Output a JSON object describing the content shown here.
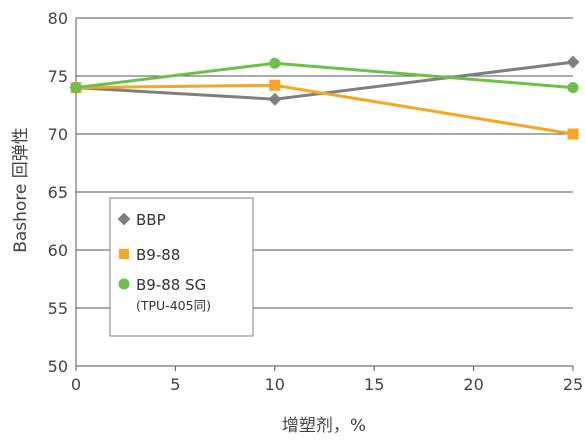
{
  "chart_data": {
    "type": "line",
    "title": "",
    "xlabel": "增塑剂，%",
    "ylabel": "Bashore 回弹性",
    "xlim": [
      0,
      25
    ],
    "ylim": [
      50,
      80
    ],
    "x_ticks": [
      "0",
      "5",
      "10",
      "15",
      "20",
      "25"
    ],
    "y_ticks": [
      "50",
      "55",
      "60",
      "65",
      "70",
      "75",
      "80"
    ],
    "grid": "horizontal",
    "legend_position": "lower-left",
    "series": [
      {
        "name": "BBP",
        "marker": "diamond",
        "color": "#7f7f7f",
        "points": [
          [
            0,
            74
          ],
          [
            10,
            73
          ],
          [
            25,
            76.2
          ]
        ]
      },
      {
        "name": "B9-88",
        "marker": "square",
        "color": "#f5a623",
        "points": [
          [
            0,
            74
          ],
          [
            10,
            74.2
          ],
          [
            25,
            70
          ]
        ]
      },
      {
        "name": "B9-88 SG",
        "name_note": "(TPU-405同)",
        "marker": "circle",
        "color": "#6cc04a",
        "points": [
          [
            0,
            74
          ],
          [
            10,
            76.1
          ],
          [
            25,
            74
          ]
        ]
      }
    ]
  }
}
